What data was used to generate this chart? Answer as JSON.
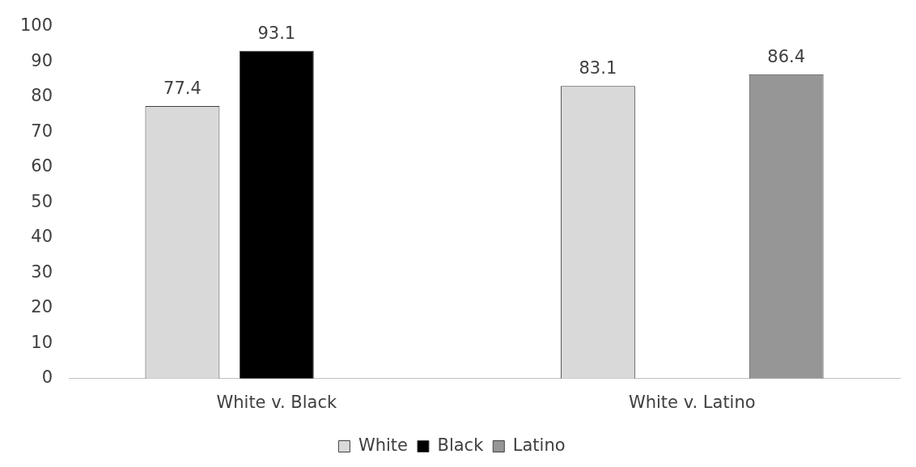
{
  "chart_data": {
    "type": "bar",
    "categories": [
      "White v. Black",
      "White v. Latino"
    ],
    "series": [
      {
        "name": "White",
        "color": "#d9d9d9",
        "values": [
          77.4,
          83.1
        ]
      },
      {
        "name": "Black",
        "color": "#000000",
        "values": [
          93.1,
          null
        ]
      },
      {
        "name": "Latino",
        "color": "#969696",
        "values": [
          null,
          86.4
        ]
      }
    ],
    "ylim": [
      0,
      100
    ],
    "yticks": [
      0,
      10,
      20,
      30,
      40,
      50,
      60,
      70,
      80,
      90,
      100
    ],
    "grid": false,
    "legend": "bottom",
    "data_labels": true
  }
}
